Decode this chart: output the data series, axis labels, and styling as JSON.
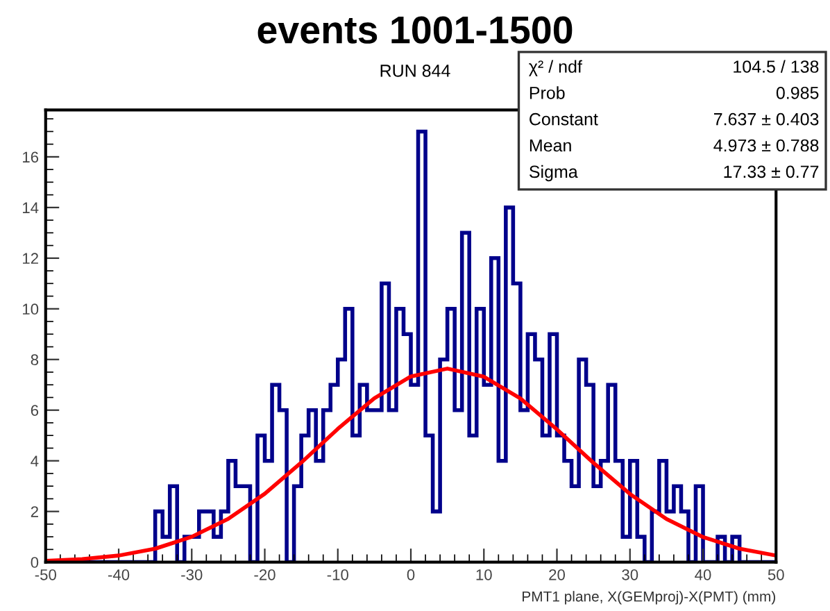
{
  "chart_data": {
    "type": "histogram",
    "title": "events 1001-1500",
    "subtitle": "RUN 844",
    "xlabel": "PMT1 plane, X(GEMproj)-X(PMT) (mm)",
    "bins": [
      -50,
      -49,
      -48,
      -47,
      -46,
      -45,
      -44,
      -43,
      -42,
      -41,
      -40,
      -39,
      -38,
      -37,
      -36,
      -35,
      -34,
      -33,
      -32,
      -31,
      -30,
      -29,
      -28,
      -27,
      -26,
      -25,
      -24,
      -23,
      -22,
      -21,
      -20,
      -19,
      -18,
      -17,
      -16,
      -15,
      -14,
      -13,
      -12,
      -11,
      -10,
      -9,
      -8,
      -7,
      -6,
      -5,
      -4,
      -3,
      -2,
      -1,
      0,
      1,
      2,
      3,
      4,
      5,
      6,
      7,
      8,
      9,
      10,
      11,
      12,
      13,
      14,
      15,
      16,
      17,
      18,
      19,
      20,
      21,
      22,
      23,
      24,
      25,
      26,
      27,
      28,
      29,
      30,
      31,
      32,
      33,
      34,
      35,
      36,
      37,
      38,
      39,
      40,
      41,
      42,
      43,
      44,
      45,
      46,
      47,
      48,
      49,
      50
    ],
    "values": [
      0,
      0,
      0,
      0,
      0,
      0,
      0,
      0,
      0,
      0,
      0,
      0,
      0,
      0,
      0,
      2,
      1,
      3,
      0,
      1,
      1,
      2,
      2,
      1,
      2,
      4,
      3,
      3,
      0,
      5,
      4,
      7,
      6,
      0,
      3,
      5,
      6,
      4,
      6,
      7,
      8,
      10,
      5,
      7,
      6,
      6,
      11,
      6,
      10,
      9,
      7,
      17,
      5,
      2,
      8,
      10,
      6,
      13,
      5,
      10,
      7,
      12,
      4,
      14,
      11,
      6,
      9,
      8,
      5,
      9,
      5,
      4,
      3,
      8,
      7,
      3,
      4,
      7,
      4,
      1,
      4,
      1,
      0,
      2,
      4,
      2,
      3,
      2,
      0,
      3,
      0,
      0,
      1,
      0,
      1,
      0,
      0,
      0,
      0,
      0
    ],
    "color": "#00008b",
    "series": [
      {
        "type": "line",
        "color": "#ff0000",
        "x": [
          -50,
          -45,
          -40,
          -35,
          -30,
          -25,
          -20,
          -15,
          -10,
          -5,
          0,
          5,
          10,
          15,
          20,
          25,
          30,
          35,
          40,
          45,
          50
        ],
        "values": [
          0.05,
          0.12,
          0.26,
          0.53,
          1.0,
          1.71,
          2.7,
          3.93,
          5.26,
          6.47,
          7.33,
          7.64,
          7.32,
          6.46,
          5.24,
          3.92,
          2.69,
          1.7,
          0.99,
          0.53,
          0.26
        ]
      }
    ],
    "annotations": [
      "χ² / ndf",
      "104.5 / 138",
      "Prob",
      "0.985",
      "Constant",
      "7.637 ± 0.403",
      "Mean",
      "4.973 ± 0.788",
      "Sigma",
      "17.33 ± 0.77"
    ],
    "xlim": [
      -50,
      50
    ],
    "ylim": [
      0,
      17.85
    ],
    "xticks": [
      -50,
      -40,
      -30,
      -20,
      -10,
      0,
      10,
      20,
      30,
      40,
      50
    ],
    "yticks": [
      0,
      2,
      4,
      6,
      8,
      10,
      12,
      14,
      16
    ],
    "grid": false,
    "legend": false
  }
}
